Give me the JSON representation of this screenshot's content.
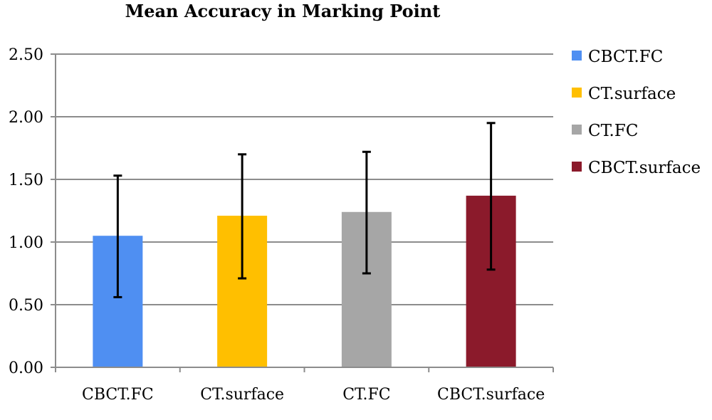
{
  "chart_data": {
    "type": "bar",
    "title": "Mean Accuracy in Marking Point",
    "xlabel": "",
    "ylabel": "",
    "categories": [
      "CBCT.FC",
      "CT.surface",
      "CT.FC",
      "CBCT.surface"
    ],
    "series": [
      {
        "name": "CBCT.FC",
        "color": "#4f8ff2",
        "category": "CBCT.FC",
        "value": 1.05,
        "error_low": 0.56,
        "error_high": 1.53
      },
      {
        "name": "CT.surface",
        "color": "#ffbf00",
        "category": "CT.surface",
        "value": 1.21,
        "error_low": 0.71,
        "error_high": 1.7
      },
      {
        "name": "CT.FC",
        "color": "#a6a6a6",
        "category": "CT.FC",
        "value": 1.24,
        "error_low": 0.75,
        "error_high": 1.72
      },
      {
        "name": "CBCT.surface",
        "color": "#8b1a2b",
        "category": "CBCT.surface",
        "value": 1.37,
        "error_low": 0.78,
        "error_high": 1.95
      }
    ],
    "ylim": [
      0,
      2.5
    ],
    "yticks": [
      "0.00",
      "0.50",
      "1.00",
      "1.50",
      "2.00",
      "2.50"
    ],
    "grid": true,
    "legend_position": "right"
  }
}
